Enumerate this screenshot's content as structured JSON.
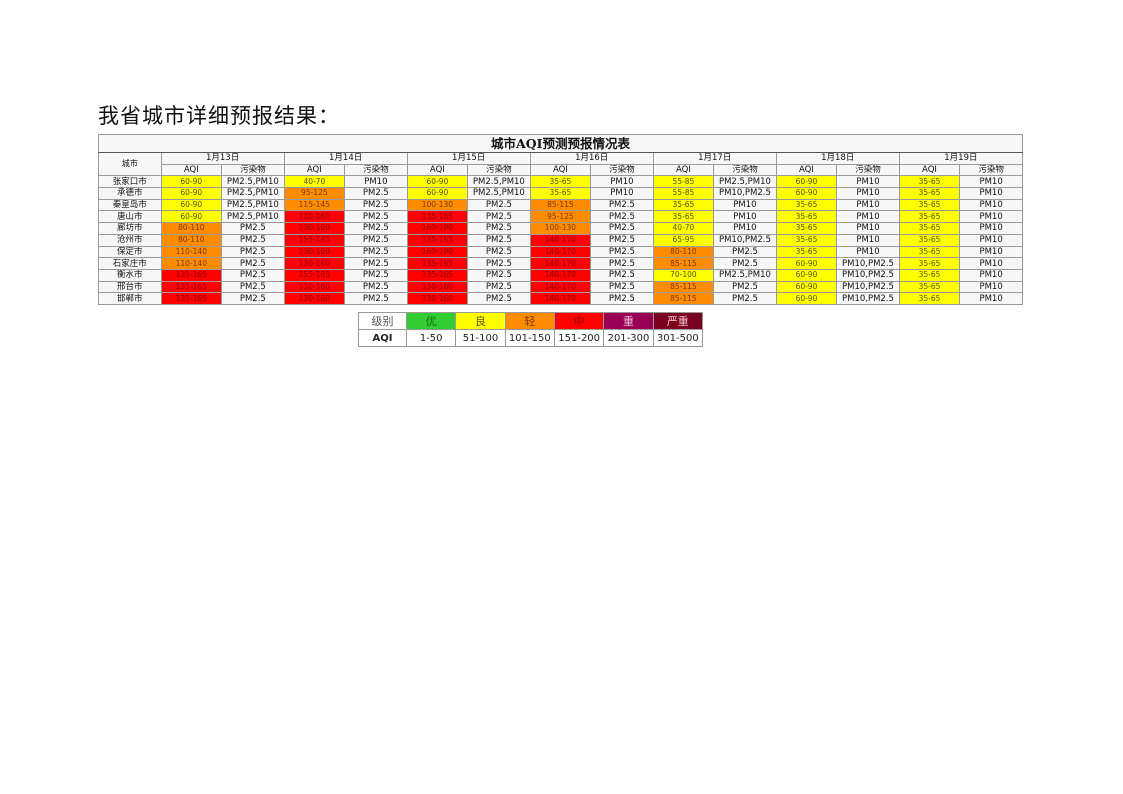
{
  "heading": "我省城市详细预报结果：",
  "table": {
    "title": "城市AQI预测预报情况表",
    "city_header": "城市",
    "aqi_header": "AQI",
    "pollutant_header": "污染物",
    "dates": [
      "1月13日",
      "1月14日",
      "1月15日",
      "1月16日",
      "1月17日",
      "1月18日",
      "1月19日"
    ],
    "rows": [
      {
        "city": "张家口市",
        "cells": [
          [
            "60-90",
            "PM2.5,PM10",
            "良"
          ],
          [
            "40-70",
            "PM10",
            "良"
          ],
          [
            "60-90",
            "PM2.5,PM10",
            "良"
          ],
          [
            "35-65",
            "PM10",
            "良"
          ],
          [
            "55-85",
            "PM2.5,PM10",
            "良"
          ],
          [
            "60-90",
            "PM10",
            "良"
          ],
          [
            "35-65",
            "PM10",
            "良"
          ]
        ]
      },
      {
        "city": "承德市",
        "cells": [
          [
            "60-90",
            "PM2.5,PM10",
            "良"
          ],
          [
            "95-125",
            "PM2.5",
            "轻"
          ],
          [
            "60-90",
            "PM2.5,PM10",
            "良"
          ],
          [
            "35-65",
            "PM10",
            "良"
          ],
          [
            "55-85",
            "PM10,PM2.5",
            "良"
          ],
          [
            "60-90",
            "PM10",
            "良"
          ],
          [
            "35-65",
            "PM10",
            "良"
          ]
        ]
      },
      {
        "city": "秦皇岛市",
        "cells": [
          [
            "60-90",
            "PM2.5,PM10",
            "良"
          ],
          [
            "115-145",
            "PM2.5",
            "轻"
          ],
          [
            "100-130",
            "PM2.5",
            "轻"
          ],
          [
            "85-115",
            "PM2.5",
            "轻"
          ],
          [
            "35-65",
            "PM10",
            "良"
          ],
          [
            "35-65",
            "PM10",
            "良"
          ],
          [
            "35-65",
            "PM10",
            "良"
          ]
        ]
      },
      {
        "city": "唐山市",
        "cells": [
          [
            "60-90",
            "PM2.5,PM10",
            "良"
          ],
          [
            "130-160",
            "PM2.5",
            "中"
          ],
          [
            "135-165",
            "PM2.5",
            "中"
          ],
          [
            "95-125",
            "PM2.5",
            "轻"
          ],
          [
            "35-65",
            "PM10",
            "良"
          ],
          [
            "35-65",
            "PM10",
            "良"
          ],
          [
            "35-65",
            "PM10",
            "良"
          ]
        ]
      },
      {
        "city": "廊坊市",
        "cells": [
          [
            "80-110",
            "PM2.5",
            "轻"
          ],
          [
            "130-160",
            "PM2.5",
            "中"
          ],
          [
            "160-190",
            "PM2.5",
            "中"
          ],
          [
            "100-130",
            "PM2.5",
            "轻"
          ],
          [
            "40-70",
            "PM10",
            "良"
          ],
          [
            "35-65",
            "PM10",
            "良"
          ],
          [
            "35-65",
            "PM10",
            "良"
          ]
        ]
      },
      {
        "city": "沧州市",
        "cells": [
          [
            "80-110",
            "PM2.5",
            "轻"
          ],
          [
            "155-185",
            "PM2.5",
            "中"
          ],
          [
            "135-165",
            "PM2.5",
            "中"
          ],
          [
            "140-170",
            "PM2.5",
            "中"
          ],
          [
            "65-95",
            "PM10,PM2.5",
            "良"
          ],
          [
            "35-65",
            "PM10",
            "良"
          ],
          [
            "35-65",
            "PM10",
            "良"
          ]
        ]
      },
      {
        "city": "保定市",
        "cells": [
          [
            "110-140",
            "PM2.5",
            "轻"
          ],
          [
            "130-160",
            "PM2.5",
            "中"
          ],
          [
            "160-190",
            "PM2.5",
            "中"
          ],
          [
            "140-170",
            "PM2.5",
            "中"
          ],
          [
            "80-110",
            "PM2.5",
            "轻"
          ],
          [
            "35-65",
            "PM10",
            "良"
          ],
          [
            "35-65",
            "PM10",
            "良"
          ]
        ]
      },
      {
        "city": "石家庄市",
        "cells": [
          [
            "110-140",
            "PM2.5",
            "轻"
          ],
          [
            "130-160",
            "PM2.5",
            "中"
          ],
          [
            "135-165",
            "PM2.5",
            "中"
          ],
          [
            "140-170",
            "PM2.5",
            "中"
          ],
          [
            "85-115",
            "PM2.5",
            "轻"
          ],
          [
            "60-90",
            "PM10,PM2.5",
            "良"
          ],
          [
            "35-65",
            "PM10",
            "良"
          ]
        ]
      },
      {
        "city": "衡水市",
        "cells": [
          [
            "135-165",
            "PM2.5",
            "中"
          ],
          [
            "155-185",
            "PM2.5",
            "中"
          ],
          [
            "135-165",
            "PM2.5",
            "中"
          ],
          [
            "140-170",
            "PM2.5",
            "中"
          ],
          [
            "70-100",
            "PM2.5,PM10",
            "良"
          ],
          [
            "60-90",
            "PM10,PM2.5",
            "良"
          ],
          [
            "35-65",
            "PM10",
            "良"
          ]
        ]
      },
      {
        "city": "邢台市",
        "cells": [
          [
            "135-165",
            "PM2.5",
            "中"
          ],
          [
            "130-160",
            "PM2.5",
            "中"
          ],
          [
            "130-160",
            "PM2.5",
            "中"
          ],
          [
            "140-170",
            "PM2.5",
            "中"
          ],
          [
            "85-115",
            "PM2.5",
            "轻"
          ],
          [
            "60-90",
            "PM10,PM2.5",
            "良"
          ],
          [
            "35-65",
            "PM10",
            "良"
          ]
        ]
      },
      {
        "city": "邯郸市",
        "cells": [
          [
            "135-165",
            "PM2.5",
            "中"
          ],
          [
            "130-160",
            "PM2.5",
            "中"
          ],
          [
            "130-160",
            "PM2.5",
            "中"
          ],
          [
            "140-170",
            "PM2.5",
            "中"
          ],
          [
            "85-115",
            "PM2.5",
            "轻"
          ],
          [
            "60-90",
            "PM10,PM2.5",
            "良"
          ],
          [
            "35-65",
            "PM10",
            "良"
          ]
        ]
      }
    ]
  },
  "legend": {
    "level_header": "级别",
    "aqi_header": "AQI",
    "levels": [
      {
        "name": "优",
        "range": "1-50",
        "color": "#33cc33",
        "text_color": "#1a6e1a"
      },
      {
        "name": "良",
        "range": "51-100",
        "color": "#ffff00",
        "text_color": "#555500"
      },
      {
        "name": "轻",
        "range": "101-150",
        "color": "#ff8c00",
        "text_color": "#7a3a00"
      },
      {
        "name": "中",
        "range": "151-200",
        "color": "#ff0000",
        "text_color": "#8a0000"
      },
      {
        "name": "重",
        "range": "201-300",
        "color": "#990055",
        "text_color": "#f0c0d8"
      },
      {
        "name": "严重",
        "range": "301-500",
        "color": "#7a0020",
        "text_color": "#f0c0c8"
      }
    ]
  }
}
